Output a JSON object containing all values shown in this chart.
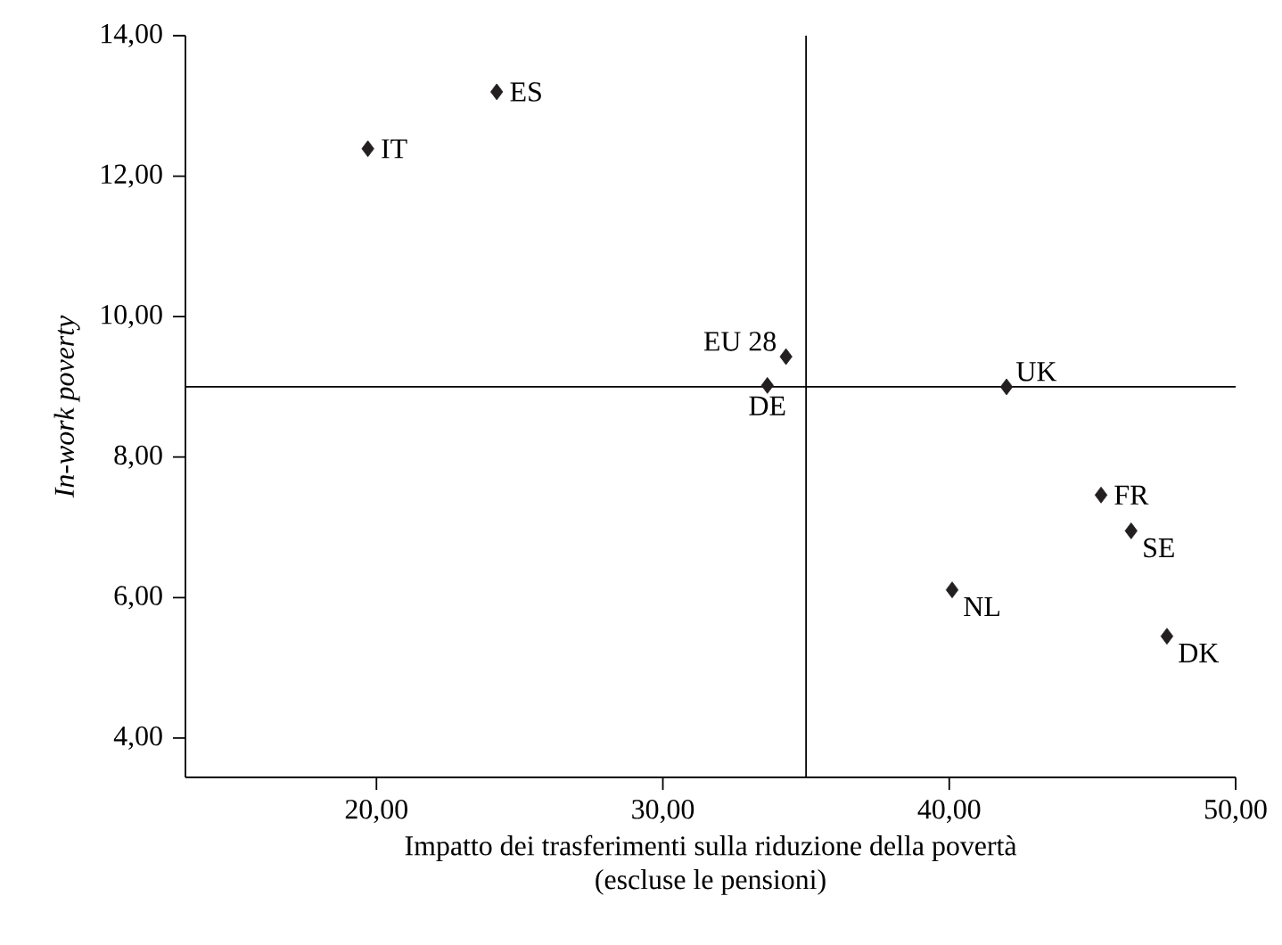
{
  "chart_data": {
    "type": "scatter",
    "xlabel": "Impatto dei trasferimenti sulla riduzione della povertà\n(escluse le pensioni)",
    "ylabel": "In-work poverty",
    "series": [
      {
        "color": "#231f20",
        "x": [
          24.2,
          19.7,
          34.3,
          33.65,
          42.0,
          45.3,
          46.35,
          40.1,
          47.6
        ],
        "values": [
          13.2,
          12.39,
          9.43,
          9.02,
          9.0,
          7.46,
          6.95,
          6.11,
          5.45
        ]
      }
    ],
    "marker": "diamond",
    "xlim": [
      13.33,
      50
    ],
    "ylim": [
      3.44,
      14
    ],
    "xticks": [
      {
        "value": 20,
        "label": "20,00"
      },
      {
        "value": 30,
        "label": "30,00"
      },
      {
        "value": 40,
        "label": "40,00"
      },
      {
        "value": 50,
        "label": "50,00"
      }
    ],
    "yticks": [
      {
        "value": 4,
        "label": "4,00"
      },
      {
        "value": 6,
        "label": "6,00"
      },
      {
        "value": 8,
        "label": "8,00"
      },
      {
        "value": 10,
        "label": "10,00"
      },
      {
        "value": 12,
        "label": "12,00"
      },
      {
        "value": 14,
        "label": "14,00"
      }
    ],
    "ref_lines": [
      {
        "axis": "x",
        "value": 35
      },
      {
        "axis": "y",
        "value": 9
      }
    ],
    "annotations": [
      {
        "text": "ES",
        "x": 24.2,
        "y": 13.2
      },
      {
        "text": "IT",
        "x": 19.7,
        "y": 12.39
      },
      {
        "text": "EU 28",
        "x": 34.3,
        "y": 9.43
      },
      {
        "text": "DE",
        "x": 33.65,
        "y": 9.02
      },
      {
        "text": "UK",
        "x": 42.0,
        "y": 9.0
      },
      {
        "text": "FR",
        "x": 45.3,
        "y": 7.46
      },
      {
        "text": "SE",
        "x": 46.35,
        "y": 6.95
      },
      {
        "text": "NL",
        "x": 40.1,
        "y": 6.11
      },
      {
        "text": "DK",
        "x": 47.6,
        "y": 5.45
      }
    ]
  }
}
